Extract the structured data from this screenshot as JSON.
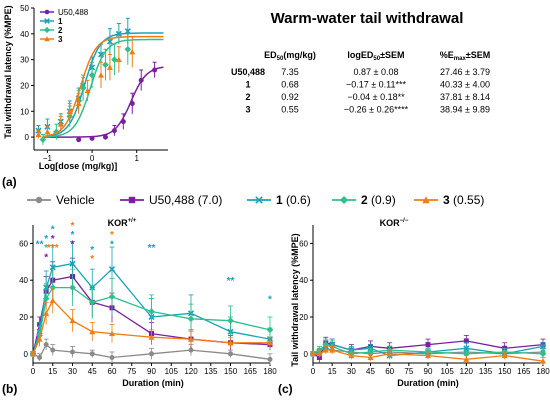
{
  "colors": {
    "U50,488": "#7b1fa2",
    "1": "#1aa3b8",
    "2": "#2ec08a",
    "3": "#f07d14",
    "Vehicle": "#8a8a8a"
  },
  "panel_labels": {
    "a": "(a)",
    "b": "(b)",
    "c": "(c)"
  },
  "table": {
    "title": "Warm-water tail withdrawal",
    "header": {
      "ed50_main": "ED",
      "ed50_sub": "50",
      "ed50_tail": "(mg/kg)",
      "log_pre": "logED",
      "log_sub": "50",
      "log_tail": "±SEM",
      "emax_pre": "%E",
      "emax_sub": "max",
      "emax_tail": "±SEM"
    },
    "rows": [
      {
        "name": "U50,488",
        "ed50": "7.35",
        "log": "0.87 ± 0.08",
        "emax": "27.46 ± 3.79"
      },
      {
        "name": "1",
        "ed50": "0.68",
        "log": "−0.17 ± 0.11***",
        "emax": "40.33 ± 4.00"
      },
      {
        "name": "2",
        "ed50": "0.92",
        "log": "−0.04 ± 0.18**",
        "emax": "37.81 ± 8.14"
      },
      {
        "name": "3",
        "ed50": "0.55",
        "log": "−0.26 ± 0.26****",
        "emax": "38.94 ± 9.89"
      }
    ]
  },
  "legend_b": {
    "vehicle": "Vehicle",
    "u50": "U50,488",
    "u50_dose": "(7.0)",
    "c1": "1",
    "c1_dose": "(0.6)",
    "c2": "2",
    "c2_dose": "(0.9)",
    "c3": "3",
    "c3_dose": "(0.55)"
  },
  "chart_data": [
    {
      "id": "a",
      "type": "scatter",
      "xlabel": "Log[dose (mg/kg)]",
      "ylabel": "Tail withdrawal latency (%MPE)",
      "xlim": [
        -1.3,
        1.7
      ],
      "ylim": [
        -5,
        50
      ],
      "xticks": [
        -1,
        0,
        1
      ],
      "yticks": [
        0,
        10,
        20,
        30,
        40,
        50
      ],
      "legend": [
        "U50,488",
        "1",
        "2",
        "3"
      ],
      "series": [
        {
          "name": "U50,488",
          "color": "#7b1fa2",
          "marker": "circle",
          "x": [
            -0.3,
            0.0,
            0.3,
            0.5,
            0.7,
            0.9,
            1.1,
            1.4
          ],
          "y": [
            -1,
            -0.5,
            0,
            2.5,
            6,
            13,
            22,
            26
          ],
          "err": [
            0.5,
            0.5,
            1,
            2,
            3,
            4,
            4,
            3
          ],
          "fit": {
            "bottom": 0,
            "top": 27.46,
            "logEC50": 0.87
          }
        },
        {
          "name": "1",
          "color": "#1aa3b8",
          "marker": "x",
          "x": [
            -1.2,
            -1.0,
            -0.7,
            -0.5,
            -0.3,
            -0.2,
            0.0,
            0.2,
            0.4,
            0.6,
            0.8
          ],
          "y": [
            2.5,
            4,
            6,
            10,
            15,
            20,
            27,
            32,
            37,
            40,
            41
          ],
          "err": [
            2,
            3,
            3,
            4,
            4,
            3,
            4,
            4,
            5,
            4,
            5
          ],
          "fit": {
            "bottom": 0,
            "top": 40.33,
            "logEC50": -0.17
          }
        },
        {
          "name": "2",
          "color": "#2ec08a",
          "marker": "diamond",
          "x": [
            -1.1,
            -0.8,
            -0.5,
            -0.3,
            -0.2,
            0.0,
            0.3,
            0.5,
            0.8
          ],
          "y": [
            -1,
            2,
            8,
            14,
            19,
            24,
            28,
            30,
            34
          ],
          "err": [
            2,
            3,
            4,
            4,
            5,
            5,
            6,
            6,
            6
          ],
          "fit": {
            "bottom": 0,
            "top": 37.81,
            "logEC50": -0.04
          }
        },
        {
          "name": "3",
          "color": "#f07d14",
          "marker": "triangle",
          "x": [
            -1.2,
            -1.0,
            -0.7,
            -0.5,
            -0.3,
            -0.1,
            0.2,
            0.4,
            0.6,
            0.9
          ],
          "y": [
            1,
            2,
            5,
            10,
            13,
            18,
            24,
            27,
            30,
            33
          ],
          "err": [
            1.5,
            2,
            3,
            3,
            4,
            4,
            5,
            5,
            5,
            6
          ],
          "fit": {
            "bottom": 0,
            "top": 38.94,
            "logEC50": -0.26
          }
        }
      ]
    },
    {
      "id": "b",
      "type": "line",
      "title_main": "KOR",
      "title_sup": "+/+",
      "xlabel": "Duration (min)",
      "ylabel": "Tail withdrawal latency (%MPE)",
      "xlim": [
        0,
        180
      ],
      "ylim": [
        -5,
        70
      ],
      "xticks": [
        0,
        15,
        30,
        45,
        60,
        75,
        90,
        105,
        120,
        135,
        150,
        165,
        180
      ],
      "yticks": [
        0,
        20,
        40,
        60
      ],
      "series": [
        {
          "name": "Vehicle",
          "color": "#8a8a8a",
          "marker": "circle",
          "x": [
            0,
            5,
            10,
            15,
            30,
            45,
            60,
            90,
            120,
            150,
            180
          ],
          "y": [
            0,
            -2,
            5,
            2,
            1,
            0,
            -2,
            0,
            2,
            0,
            -3
          ],
          "err": [
            1,
            2,
            3,
            3,
            3,
            2,
            3,
            3,
            3,
            2,
            3
          ]
        },
        {
          "name": "U50,488",
          "color": "#7b1fa2",
          "marker": "square",
          "x": [
            0,
            5,
            10,
            15,
            30,
            45,
            60,
            90,
            120,
            150,
            180
          ],
          "y": [
            0,
            16,
            34,
            40,
            42,
            28,
            25,
            11,
            8,
            6,
            5
          ],
          "err": [
            1,
            4,
            8,
            10,
            10,
            8,
            8,
            6,
            5,
            4,
            3
          ]
        },
        {
          "name": "1",
          "color": "#1aa3b8",
          "marker": "x",
          "x": [
            0,
            5,
            10,
            15,
            30,
            45,
            60,
            90,
            120,
            150,
            180
          ],
          "y": [
            0,
            12,
            36,
            47,
            49,
            36,
            46,
            20,
            22,
            12,
            8
          ],
          "err": [
            1,
            5,
            9,
            12,
            12,
            10,
            12,
            10,
            10,
            8,
            6
          ]
        },
        {
          "name": "2",
          "color": "#2ec08a",
          "marker": "diamond",
          "x": [
            0,
            5,
            10,
            15,
            30,
            45,
            60,
            90,
            120,
            150,
            180
          ],
          "y": [
            0,
            10,
            30,
            36,
            36,
            28,
            31,
            23,
            19,
            18,
            13
          ],
          "err": [
            1,
            5,
            8,
            10,
            10,
            9,
            10,
            9,
            8,
            8,
            7
          ]
        },
        {
          "name": "3",
          "color": "#f07d14",
          "marker": "triangle",
          "x": [
            0,
            5,
            10,
            15,
            30,
            45,
            60,
            90,
            120,
            150,
            180
          ],
          "y": [
            0,
            8,
            22,
            29,
            18,
            12,
            11,
            9,
            8,
            6,
            6
          ],
          "err": [
            1,
            4,
            6,
            7,
            6,
            5,
            5,
            4,
            4,
            3,
            3
          ]
        }
      ],
      "annotations": [
        {
          "text": "**",
          "x": 5,
          "y": 60,
          "color": "#1aa3b8"
        },
        {
          "text": "*",
          "x": 10,
          "y": 63,
          "color": "#1aa3b8"
        },
        {
          "text": "*",
          "x": 10,
          "y": 58,
          "color": "#2ec08a"
        },
        {
          "text": "*",
          "x": 10,
          "y": 53,
          "color": "#7b1fa2"
        },
        {
          "text": "*",
          "x": 15,
          "y": 68,
          "color": "#1aa3b8"
        },
        {
          "text": "*",
          "x": 15,
          "y": 63,
          "color": "#7b1fa2"
        },
        {
          "text": "***",
          "x": 15,
          "y": 58,
          "color": "#f07d14"
        },
        {
          "text": "*",
          "x": 30,
          "y": 70,
          "color": "#f07d14"
        },
        {
          "text": "*",
          "x": 30,
          "y": 65,
          "color": "#1aa3b8"
        },
        {
          "text": "*",
          "x": 30,
          "y": 60,
          "color": "#7b1fa2"
        },
        {
          "text": "*",
          "x": 45,
          "y": 57,
          "color": "#1aa3b8"
        },
        {
          "text": "*",
          "x": 45,
          "y": 52,
          "color": "#f07d14"
        },
        {
          "text": "*",
          "x": 60,
          "y": 65,
          "color": "#f07d14"
        },
        {
          "text": "*",
          "x": 60,
          "y": 60,
          "color": "#1aa3b8"
        },
        {
          "text": "**",
          "x": 90,
          "y": 58,
          "color": "#1aa3b8"
        },
        {
          "text": "**",
          "x": 150,
          "y": 40,
          "color": "#1aa3b8"
        },
        {
          "text": "*",
          "x": 180,
          "y": 30,
          "color": "#1aa3b8"
        }
      ]
    },
    {
      "id": "c",
      "type": "line",
      "title_main": "KOR",
      "title_sup": "−/−",
      "xlabel": "Duration (min)",
      "ylabel": "Tail withdrawal latency (%MPE)",
      "xlim": [
        0,
        180
      ],
      "ylim": [
        -5,
        70
      ],
      "xticks": [
        0,
        15,
        30,
        45,
        60,
        75,
        90,
        105,
        120,
        135,
        150,
        165,
        180
      ],
      "yticks": [
        0,
        20,
        40,
        60
      ],
      "series": [
        {
          "name": "Vehicle",
          "color": "#8a8a8a",
          "marker": "circle",
          "x": [
            0,
            5,
            10,
            15,
            30,
            45,
            60,
            90,
            120,
            150,
            180
          ],
          "y": [
            0,
            -1,
            3,
            2,
            1,
            0,
            1,
            0,
            1,
            0,
            1
          ],
          "err": [
            1,
            2,
            2,
            2,
            2,
            2,
            2,
            2,
            2,
            2,
            2
          ]
        },
        {
          "name": "U50,488",
          "color": "#7b1fa2",
          "marker": "square",
          "x": [
            0,
            5,
            10,
            15,
            30,
            45,
            60,
            90,
            120,
            150,
            180
          ],
          "y": [
            0,
            -2,
            6,
            5,
            2,
            4,
            3,
            5,
            7,
            3,
            5
          ],
          "err": [
            1,
            3,
            3,
            3,
            3,
            3,
            3,
            3,
            3,
            3,
            3
          ]
        },
        {
          "name": "1",
          "color": "#1aa3b8",
          "marker": "x",
          "x": [
            0,
            5,
            10,
            15,
            30,
            45,
            60,
            90,
            120,
            150,
            180
          ],
          "y": [
            0,
            1,
            4,
            5,
            2,
            3,
            -1,
            1,
            3,
            0,
            4
          ],
          "err": [
            1,
            2,
            3,
            3,
            2,
            2,
            2,
            2,
            3,
            2,
            2
          ]
        },
        {
          "name": "2",
          "color": "#2ec08a",
          "marker": "diamond",
          "x": [
            0,
            5,
            10,
            15,
            30,
            45,
            60,
            90,
            120,
            150,
            180
          ],
          "y": [
            0,
            2,
            5,
            4,
            0,
            1,
            2,
            1,
            0,
            1,
            0
          ],
          "err": [
            1,
            2,
            3,
            3,
            2,
            2,
            2,
            2,
            2,
            2,
            2
          ]
        },
        {
          "name": "3",
          "color": "#f07d14",
          "marker": "triangle",
          "x": [
            0,
            5,
            10,
            15,
            30,
            45,
            60,
            90,
            120,
            150,
            180
          ],
          "y": [
            0,
            0,
            2,
            2,
            -1,
            -2,
            0,
            -1,
            -3,
            -1,
            -4
          ],
          "err": [
            1,
            2,
            2,
            2,
            2,
            2,
            2,
            2,
            2,
            2,
            2
          ]
        }
      ]
    }
  ]
}
